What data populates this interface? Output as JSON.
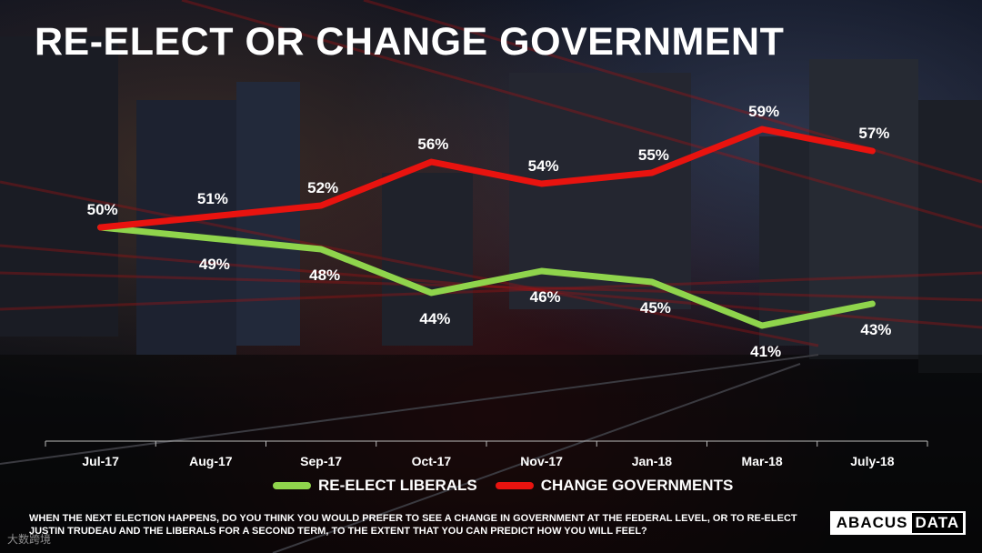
{
  "title": "RE-ELECT OR CHANGE GOVERNMENT",
  "legend": {
    "series1": "RE-ELECT LIBERALS",
    "series2": "CHANGE GOVERNMENTS"
  },
  "question": "WHEN THE NEXT ELECTION HAPPENS, DO YOU THINK YOU WOULD PREFER TO SEE A CHANGE IN GOVERNMENT AT THE FEDERAL LEVEL, OR TO RE-ELECT JUSTIN TRUDEAU AND THE LIBERALS FOR A SECOND TERM, TO THE EXTENT THAT YOU CAN PREDICT HOW YOU WILL FEEL?",
  "logo": {
    "part1": "ABACUS",
    "part2": "DATA"
  },
  "watermark": "大数跨境",
  "colors": {
    "reelect": "#8fd44c",
    "change": "#e8130f",
    "axis": "#bbbbbb",
    "text": "#ffffff"
  },
  "chart_data": {
    "type": "line",
    "title": "RE-ELECT OR CHANGE GOVERNMENT",
    "categories": [
      "Jul-17",
      "Aug-17",
      "Sep-17",
      "Oct-17",
      "Nov-17",
      "Jan-18",
      "Mar-18",
      "July-18"
    ],
    "series": [
      {
        "name": "RE-ELECT LIBERALS",
        "values": [
          50,
          49,
          48,
          44,
          46,
          45,
          41,
          43
        ],
        "labels": [
          "50%",
          "49%",
          "48%",
          "44%",
          "46%",
          "45%",
          "41%",
          "43%"
        ]
      },
      {
        "name": "CHANGE GOVERNMENTS",
        "values": [
          50,
          51,
          52,
          56,
          54,
          55,
          59,
          57
        ],
        "labels": [
          "50%",
          "51%",
          "52%",
          "56%",
          "54%",
          "55%",
          "59%",
          "57%"
        ]
      }
    ],
    "xlabel": "",
    "ylabel": "",
    "ylim": [
      40,
      60
    ],
    "grid": false,
    "legend_position": "bottom"
  }
}
